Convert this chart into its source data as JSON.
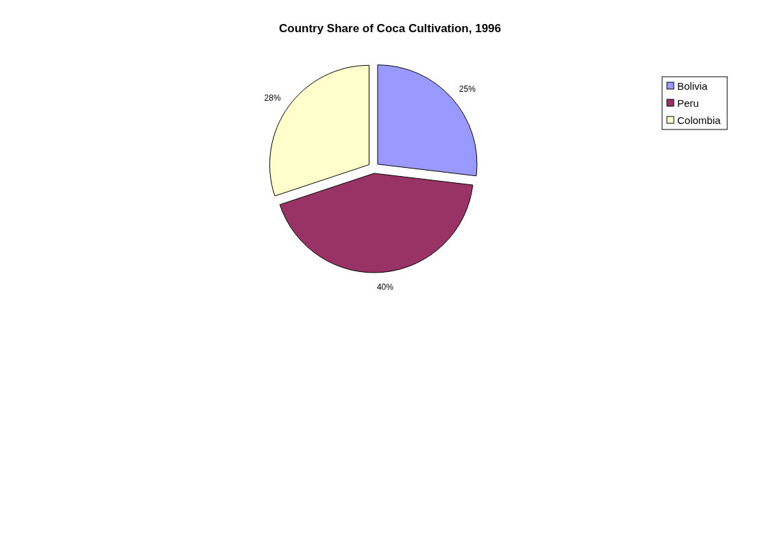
{
  "chart_data": {
    "type": "pie",
    "title": "Country Share of Coca Cultivation, 1996",
    "categories": [
      "Bolivia",
      "Peru",
      "Colombia"
    ],
    "values": [
      25,
      40,
      28
    ],
    "colors": [
      "#9999ff",
      "#993366",
      "#ffffcc"
    ],
    "value_labels": [
      "25%",
      "40%",
      "28%"
    ],
    "legend": "right"
  }
}
